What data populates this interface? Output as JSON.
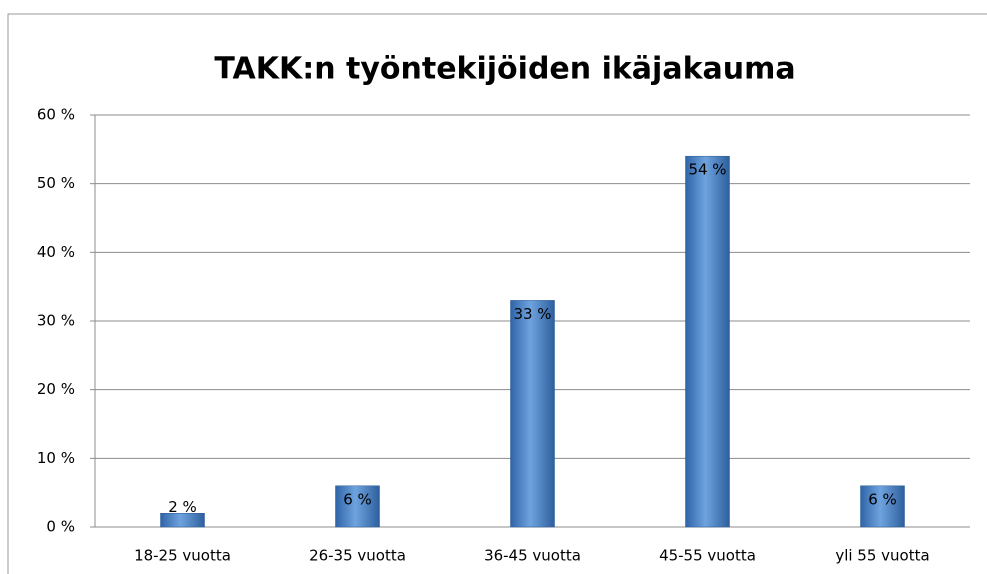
{
  "chart_data": {
    "type": "bar",
    "title": "TAKK:n työntekijöiden ikäjakauma",
    "categories": [
      "18-25 vuotta",
      "26-35 vuotta",
      "36-45 vuotta",
      "45-55 vuotta",
      "yli 55 vuotta"
    ],
    "values": [
      2,
      6,
      33,
      54,
      6
    ],
    "value_labels": [
      "2 %",
      "6 %",
      "33 %",
      "54 %",
      "6 %"
    ],
    "color": "#4a86c8",
    "ylim": [
      0,
      60
    ],
    "yticks": [
      {
        "value": 0,
        "label": "0 %"
      },
      {
        "value": 10,
        "label": "10 %"
      },
      {
        "value": 20,
        "label": "20 %"
      },
      {
        "value": 30,
        "label": "30 %"
      },
      {
        "value": 40,
        "label": "40 %"
      },
      {
        "value": 50,
        "label": "50 %"
      },
      {
        "value": 60,
        "label": "60 %"
      }
    ],
    "grid": true
  }
}
